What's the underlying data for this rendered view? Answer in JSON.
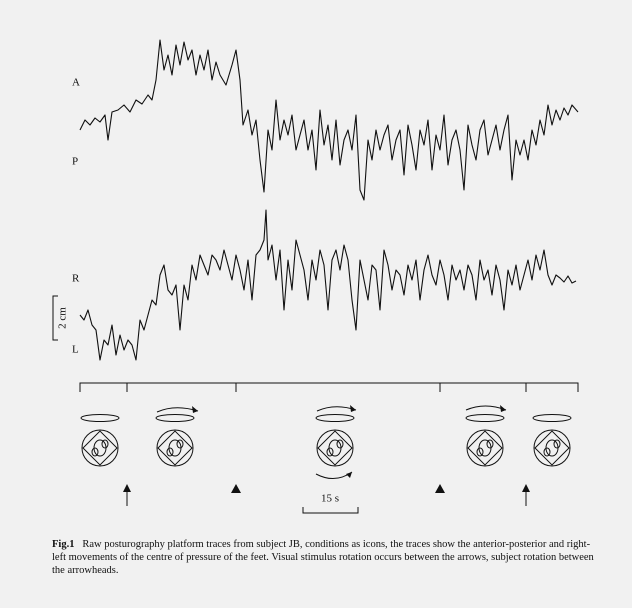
{
  "labels": {
    "a": "A",
    "p": "P",
    "r": "R",
    "l": "L"
  },
  "scale_bars": {
    "amplitude": "2 cm",
    "time": "15 s"
  },
  "caption": {
    "label": "Fig.1",
    "text": "Raw posturography platform traces from subject JB, conditions as icons, the traces show the anterior-posterior and right-left movements of the centre of pressure of the feet. Visual stimulus rotation occurs between the arrows, subject rotation between the arrowheads."
  }
}
